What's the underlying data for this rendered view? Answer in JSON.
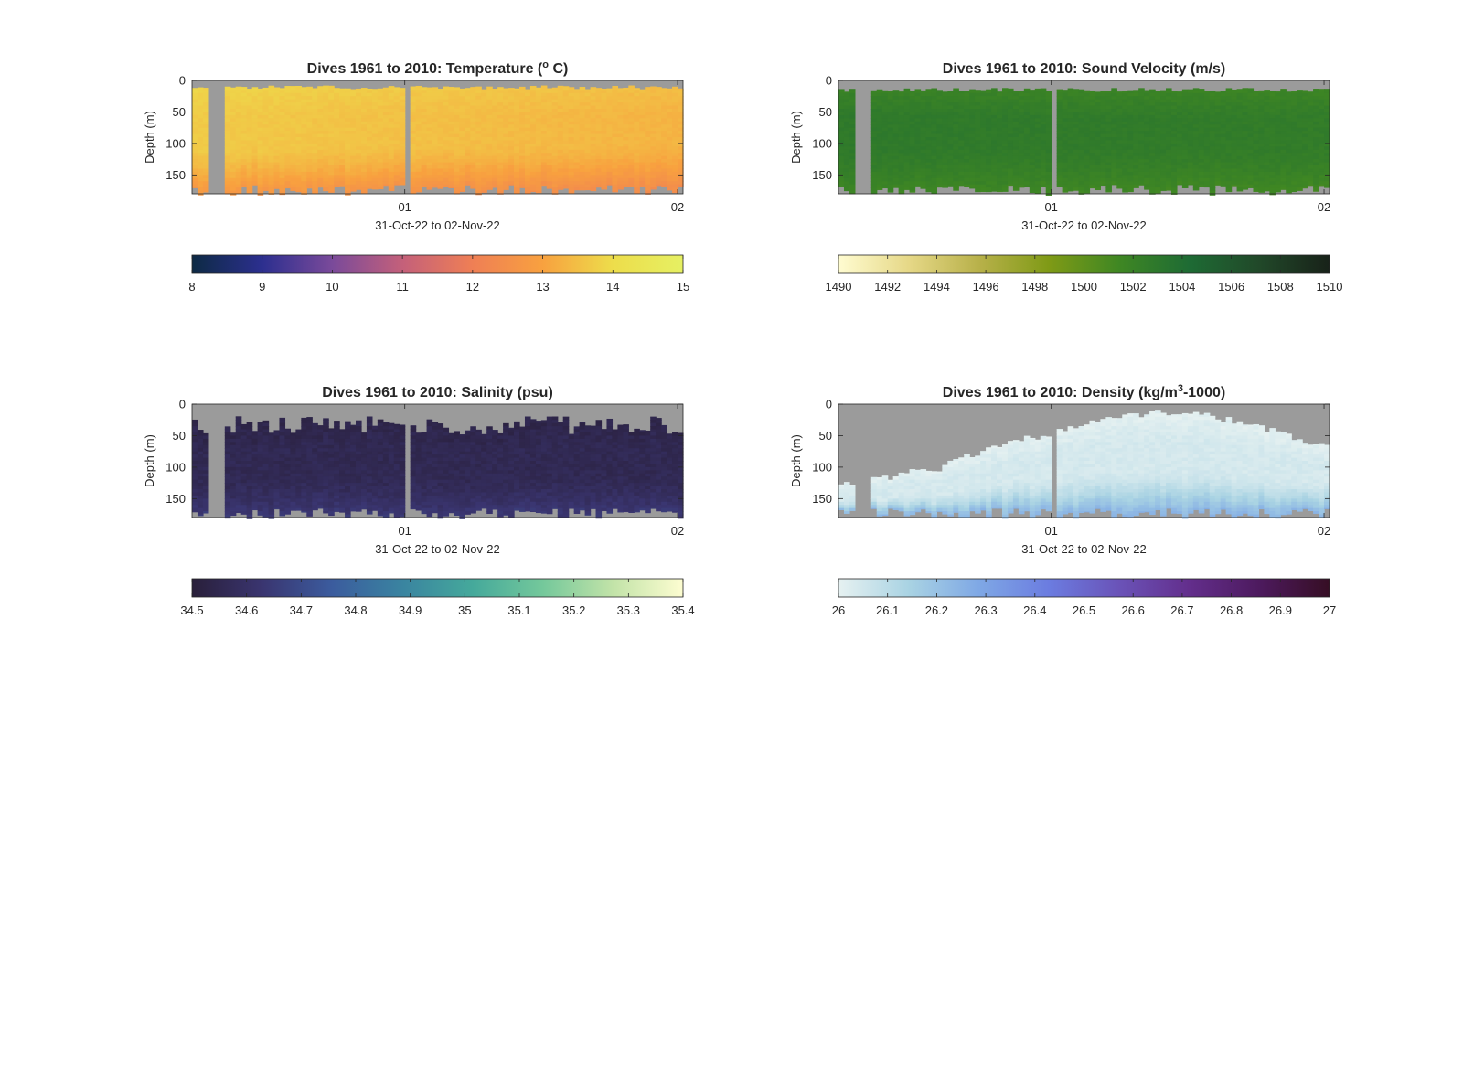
{
  "colors": {
    "nodata": "#9b9b9b",
    "axis": "#262626"
  },
  "chart_data": [
    {
      "type": "heatmap",
      "title": "Dives 1961 to 2010: Temperature (° C)",
      "title_parts": [
        "Dives 1961 to 2010: Temperature (",
        "o",
        " C)"
      ],
      "title_super": "o",
      "xlabel": "31-Oct-22 to 02-Nov-22",
      "ylabel": "Depth (m)",
      "xlim": [
        -0.78,
        1.02
      ],
      "ylim": [
        180,
        0
      ],
      "xticks": [
        {
          "value": 0,
          "label": "01"
        },
        {
          "value": 1,
          "label": "02"
        }
      ],
      "yticks": [
        0,
        50,
        100,
        150
      ],
      "gaps": [
        [
          -0.71,
          -0.67
        ],
        [
          -0.005,
          0.03
        ]
      ],
      "surface_depth": [
        8,
        14
      ],
      "bottom_depth": [
        165,
        182
      ],
      "colormap": {
        "name": "thermal",
        "stops": [
          "#0d2a44",
          "#2c2f8f",
          "#7a4a9a",
          "#c4607a",
          "#ef7f55",
          "#f8a13f",
          "#eddd4b",
          "#e6f063"
        ],
        "range": [
          8,
          15
        ],
        "ticks": [
          8,
          9,
          10,
          11,
          12,
          13,
          14,
          15
        ]
      },
      "field": {
        "base": 13.7,
        "surface_delta": 0.15,
        "bottom_delta": -1.0,
        "trend": -0.4,
        "noise": 0.08
      }
    },
    {
      "type": "heatmap",
      "title": "Dives 1961 to 2010: Sound Velocity (m/s)",
      "title_parts": [
        "Dives 1961 to 2010: Sound Velocity (m/s)"
      ],
      "xlabel": "31-Oct-22 to 02-Nov-22",
      "ylabel": "Depth (m)",
      "xlim": [
        -0.78,
        1.02
      ],
      "ylim": [
        180,
        0
      ],
      "xticks": [
        {
          "value": 0,
          "label": "01"
        },
        {
          "value": 1,
          "label": "02"
        }
      ],
      "yticks": [
        0,
        50,
        100,
        150
      ],
      "gaps": [
        [
          -0.71,
          -0.67
        ],
        [
          -0.005,
          0.03
        ]
      ],
      "surface_depth": [
        12,
        18
      ],
      "bottom_depth": [
        165,
        182
      ],
      "colormap": {
        "name": "speed",
        "stops": [
          "#fffcd1",
          "#e6d887",
          "#b8b14a",
          "#7f9a16",
          "#3f8723",
          "#1e6b34",
          "#214829",
          "#182219"
        ],
        "range": [
          1490,
          1510
        ],
        "ticks": [
          1490,
          1492,
          1494,
          1496,
          1498,
          1500,
          1502,
          1504,
          1506,
          1508,
          1510
        ]
      },
      "field": {
        "base": 1502.8,
        "surface_delta": -0.8,
        "bottom_delta": -1.2,
        "trend": -0.3,
        "noise": 0.25
      }
    },
    {
      "type": "heatmap",
      "title": "Dives 1961 to 2010: Salinity (psu)",
      "title_parts": [
        "Dives 1961 to 2010: Salinity (psu)"
      ],
      "xlabel": "31-Oct-22 to 02-Nov-22",
      "ylabel": "Depth (m)",
      "xlim": [
        -0.78,
        1.02
      ],
      "ylim": [
        180,
        0
      ],
      "xticks": [
        {
          "value": 0,
          "label": "01"
        },
        {
          "value": 1,
          "label": "02"
        }
      ],
      "yticks": [
        0,
        50,
        100,
        150
      ],
      "gaps": [
        [
          -0.71,
          -0.67
        ],
        [
          -0.005,
          0.03
        ]
      ],
      "surface_depth": [
        18,
        48
      ],
      "bottom_depth": [
        165,
        182
      ],
      "colormap": {
        "name": "haline",
        "stops": [
          "#291f3a",
          "#3a3570",
          "#3b5c9e",
          "#3a84a0",
          "#45a99b",
          "#74c89b",
          "#c2e3a8",
          "#fdfdd1"
        ],
        "range": [
          34.5,
          35.4
        ],
        "ticks": [
          34.5,
          34.6,
          34.7,
          34.8,
          34.9,
          35,
          35.1,
          35.2,
          35.3,
          35.4
        ]
      },
      "field": {
        "base": 34.56,
        "surface_delta": -0.02,
        "bottom_delta": 0.08,
        "trend": 0.0,
        "noise": 0.02
      }
    },
    {
      "type": "heatmap",
      "title": "Dives 1961 to 2010: Density (kg/m³-1000)",
      "title_parts": [
        "Dives 1961 to 2010: Density (kg/m",
        "3",
        "-1000)"
      ],
      "title_super": "3",
      "xlabel": "31-Oct-22 to 02-Nov-22",
      "ylabel": "Depth (m)",
      "xlim": [
        -0.78,
        1.02
      ],
      "ylim": [
        180,
        0
      ],
      "xticks": [
        {
          "value": 0,
          "label": "01"
        },
        {
          "value": 1,
          "label": "02"
        }
      ],
      "yticks": [
        0,
        50,
        100,
        150
      ],
      "gaps": [
        [
          -0.71,
          -0.67
        ],
        [
          -0.005,
          0.03
        ]
      ],
      "surface_profile": [
        [
          -0.78,
          130
        ],
        [
          -0.6,
          115
        ],
        [
          -0.4,
          100
        ],
        [
          -0.25,
          75
        ],
        [
          -0.1,
          55
        ],
        [
          0.0,
          50
        ],
        [
          0.15,
          25
        ],
        [
          0.3,
          15
        ],
        [
          0.5,
          15
        ],
        [
          0.65,
          25
        ],
        [
          0.8,
          40
        ],
        [
          0.95,
          60
        ],
        [
          1.02,
          65
        ]
      ],
      "bottom_depth": [
        165,
        182
      ],
      "colormap": {
        "name": "dense",
        "stops": [
          "#e6f1f1",
          "#a9d3e3",
          "#7fa8e5",
          "#6b7ce0",
          "#6a53b8",
          "#632e8c",
          "#4d1a5e",
          "#360e24"
        ],
        "range": [
          26,
          27
        ],
        "ticks": [
          26,
          26.1,
          26.2,
          26.3,
          26.4,
          26.5,
          26.6,
          26.7,
          26.8,
          26.9,
          27
        ]
      },
      "field": {
        "base": 26.04,
        "surface_delta": -0.03,
        "bottom_delta": 0.22,
        "trend": 0.0,
        "noise": 0.015
      }
    }
  ]
}
